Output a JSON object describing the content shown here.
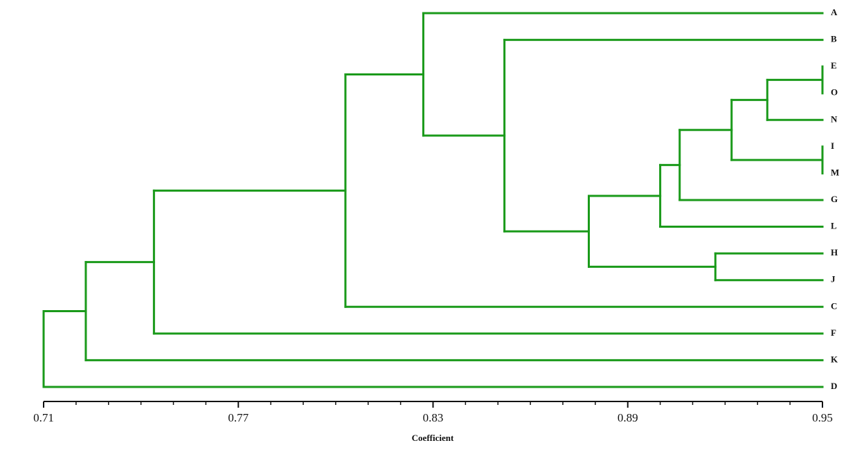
{
  "chart_data": {
    "type": "dendrogram",
    "x_label": "Coefficient",
    "color": "#1a9a1a",
    "xlim": [
      0.71,
      0.95
    ],
    "xticks": [
      0.71,
      0.77,
      0.83,
      0.89,
      0.95
    ],
    "xminorticks": [
      0.72,
      0.73,
      0.74,
      0.75,
      0.76,
      0.78,
      0.79,
      0.8,
      0.81,
      0.82,
      0.84,
      0.85,
      0.86,
      0.87,
      0.88,
      0.9,
      0.91,
      0.92,
      0.93,
      0.94
    ],
    "tree": {
      "height": 0.71,
      "children": [
        {
          "height": 0.723,
          "children": [
            {
              "height": 0.744,
              "children": [
                {
                  "height": 0.803,
                  "children": [
                    {
                      "height": 0.827,
                      "children": [
                        {
                          "label": "A"
                        },
                        {
                          "height": 0.852,
                          "children": [
                            {
                              "label": "B"
                            },
                            {
                              "height": 0.878,
                              "children": [
                                {
                                  "height": 0.9,
                                  "children": [
                                    {
                                      "height": 0.906,
                                      "children": [
                                        {
                                          "height": 0.922,
                                          "children": [
                                            {
                                              "height": 0.933,
                                              "children": [
                                                {
                                                  "height": 0.95,
                                                  "children": [
                                                    {
                                                      "label": "E"
                                                    },
                                                    {
                                                      "label": "O"
                                                    }
                                                  ]
                                                },
                                                {
                                                  "label": "N"
                                                }
                                              ]
                                            },
                                            {
                                              "height": 0.95,
                                              "children": [
                                                {
                                                  "label": "I"
                                                },
                                                {
                                                  "label": "M"
                                                }
                                              ]
                                            }
                                          ]
                                        },
                                        {
                                          "label": "G"
                                        }
                                      ]
                                    },
                                    {
                                      "label": "L"
                                    }
                                  ]
                                },
                                {
                                  "height": 0.917,
                                  "children": [
                                    {
                                      "label": "H"
                                    },
                                    {
                                      "label": "J"
                                    }
                                  ]
                                }
                              ]
                            }
                          ]
                        }
                      ]
                    },
                    {
                      "label": "C"
                    }
                  ]
                },
                {
                  "label": "F"
                }
              ]
            },
            {
              "label": "K"
            }
          ]
        },
        {
          "label": "D"
        }
      ]
    }
  }
}
